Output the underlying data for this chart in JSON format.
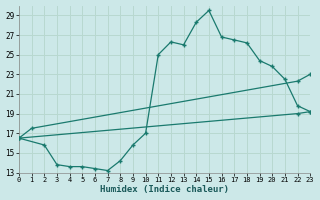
{
  "bg_color": "#cce8e8",
  "grid_color": "#b8d8d0",
  "line_color": "#1a7a6e",
  "xlabel": "Humidex (Indice chaleur)",
  "xlim": [
    0,
    23
  ],
  "ylim": [
    13,
    30
  ],
  "yticks": [
    13,
    15,
    17,
    19,
    21,
    23,
    25,
    27,
    29
  ],
  "xticks": [
    0,
    1,
    2,
    3,
    4,
    5,
    6,
    7,
    8,
    9,
    10,
    11,
    12,
    13,
    14,
    15,
    16,
    17,
    18,
    19,
    20,
    21,
    22,
    23
  ],
  "line1_x": [
    0,
    1,
    22,
    23
  ],
  "line1_y": [
    16.5,
    17.5,
    22.3,
    23.0
  ],
  "line2_x": [
    0,
    22,
    23
  ],
  "line2_y": [
    16.5,
    19.0,
    19.2
  ],
  "line3_x": [
    0,
    2,
    3,
    4,
    5,
    6,
    7,
    8,
    9,
    10,
    11,
    12,
    13,
    14,
    15,
    16,
    17,
    18,
    19,
    20,
    21,
    22,
    23
  ],
  "line3_y": [
    16.5,
    15.8,
    13.8,
    13.6,
    13.6,
    13.4,
    13.2,
    14.2,
    15.8,
    17.0,
    25.0,
    26.3,
    26.0,
    28.3,
    29.5,
    26.8,
    26.5,
    26.2,
    24.4,
    23.8,
    22.5,
    19.8,
    19.2
  ]
}
